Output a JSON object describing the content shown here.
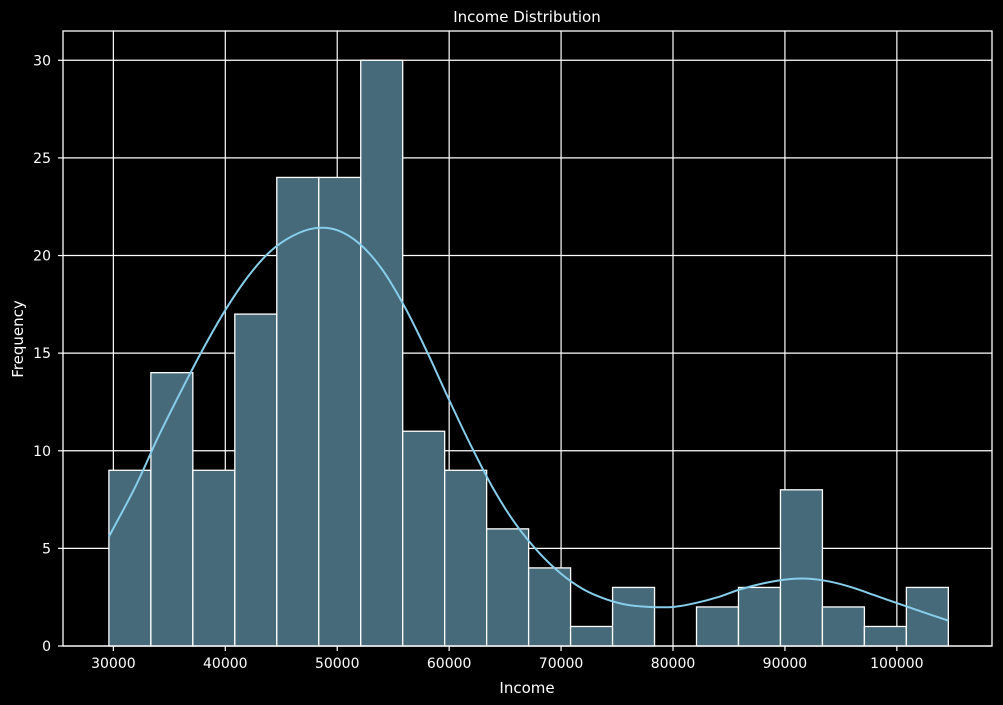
{
  "chart_data": {
    "type": "bar",
    "title": "Income Distribution",
    "xlabel": "Income",
    "ylabel": "Frequency",
    "xlim": [
      25500,
      108500
    ],
    "ylim": [
      0,
      31.5
    ],
    "xticks": [
      30000,
      40000,
      50000,
      60000,
      70000,
      80000,
      90000,
      100000
    ],
    "yticks": [
      0,
      5,
      10,
      15,
      20,
      25,
      30
    ],
    "grid": true,
    "bins": [
      {
        "x0": 29600,
        "x1": 33350,
        "count": 9
      },
      {
        "x0": 33350,
        "x1": 37100,
        "count": 14
      },
      {
        "x0": 37100,
        "x1": 40850,
        "count": 9
      },
      {
        "x0": 40850,
        "x1": 44600,
        "count": 17
      },
      {
        "x0": 44600,
        "x1": 48350,
        "count": 24
      },
      {
        "x0": 48350,
        "x1": 52100,
        "count": 24
      },
      {
        "x0": 52100,
        "x1": 55850,
        "count": 30
      },
      {
        "x0": 55850,
        "x1": 59600,
        "count": 11
      },
      {
        "x0": 59600,
        "x1": 63350,
        "count": 9
      },
      {
        "x0": 63350,
        "x1": 67100,
        "count": 6
      },
      {
        "x0": 67100,
        "x1": 70850,
        "count": 4
      },
      {
        "x0": 70850,
        "x1": 74600,
        "count": 1
      },
      {
        "x0": 74600,
        "x1": 78350,
        "count": 3
      },
      {
        "x0": 78350,
        "x1": 82100,
        "count": 0
      },
      {
        "x0": 82100,
        "x1": 85850,
        "count": 2
      },
      {
        "x0": 85850,
        "x1": 89600,
        "count": 3
      },
      {
        "x0": 89600,
        "x1": 93350,
        "count": 8
      },
      {
        "x0": 93350,
        "x1": 97100,
        "count": 2
      },
      {
        "x0": 97100,
        "x1": 100850,
        "count": 1
      },
      {
        "x0": 100850,
        "x1": 104600,
        "count": 3
      }
    ],
    "kde": {
      "x": [
        29600,
        32000,
        34000,
        36000,
        38000,
        40000,
        42000,
        44000,
        46000,
        48000,
        50000,
        52000,
        54000,
        56000,
        58000,
        60000,
        62000,
        64000,
        66000,
        68000,
        70000,
        72000,
        74000,
        76000,
        78000,
        80000,
        82000,
        84000,
        86000,
        88000,
        90000,
        92000,
        94000,
        96000,
        98000,
        100000,
        102000,
        104600
      ],
      "y": [
        5.6,
        8.2,
        10.7,
        13.0,
        15.2,
        17.2,
        18.9,
        20.2,
        21.0,
        21.4,
        21.3,
        20.6,
        19.3,
        17.4,
        15.1,
        12.6,
        10.2,
        8.0,
        6.2,
        4.8,
        3.7,
        2.9,
        2.4,
        2.1,
        2.0,
        2.0,
        2.2,
        2.5,
        2.9,
        3.2,
        3.4,
        3.45,
        3.3,
        3.0,
        2.6,
        2.2,
        1.8,
        1.3
      ]
    },
    "colors": {
      "background": "#000000",
      "bar_fill": "#466a79",
      "bar_edge": "#ffffff",
      "kde_line": "#87ceeb",
      "grid": "#ffffff",
      "text": "#ffffff"
    }
  }
}
